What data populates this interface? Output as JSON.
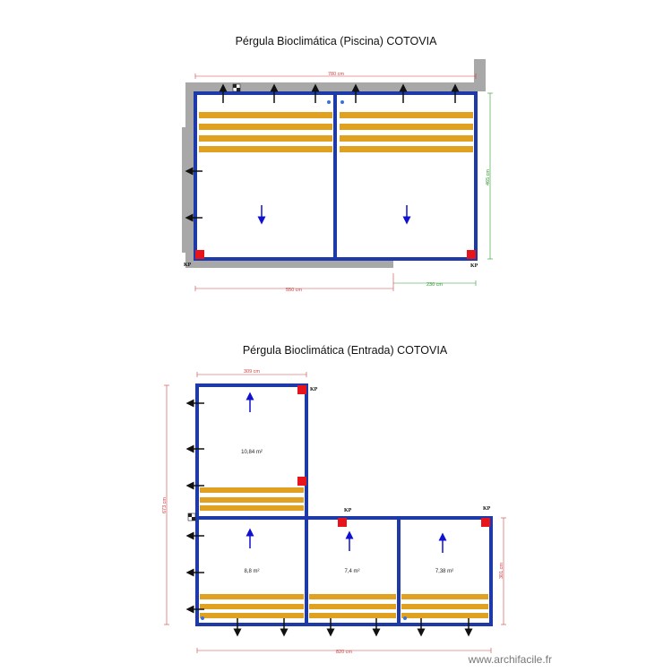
{
  "plan1": {
    "title": "Pérgula Bioclimática (Piscina) COTOVIA",
    "dim_top": "780 cm",
    "dim_right": "465 cm",
    "dim_bottom_left": "550 cm",
    "dim_bottom_right": "230 cm",
    "marker_left": "KP",
    "marker_right": "KP"
  },
  "plan2": {
    "title": "Pérgula Bioclimática (Entrada) COTOVIA",
    "dim_top": "309 cm",
    "dim_left": "673 cm",
    "dim_right": "301 cm",
    "dim_bottom": "820 cm",
    "markers": [
      "KP",
      "KP",
      "KP"
    ],
    "areas": [
      "10,84 m²",
      "8,8 m²",
      "7,4 m²",
      "7,38 m²"
    ]
  },
  "watermark": "www.archifacile.fr",
  "colors": {
    "frame": "#1e3aa8",
    "slat": "#e0a020",
    "wall": "#a8a8a8",
    "post": "#e8141c",
    "dim_red": "#d04040",
    "dim_green": "#2a9a2a",
    "flow": "#1010d0"
  }
}
